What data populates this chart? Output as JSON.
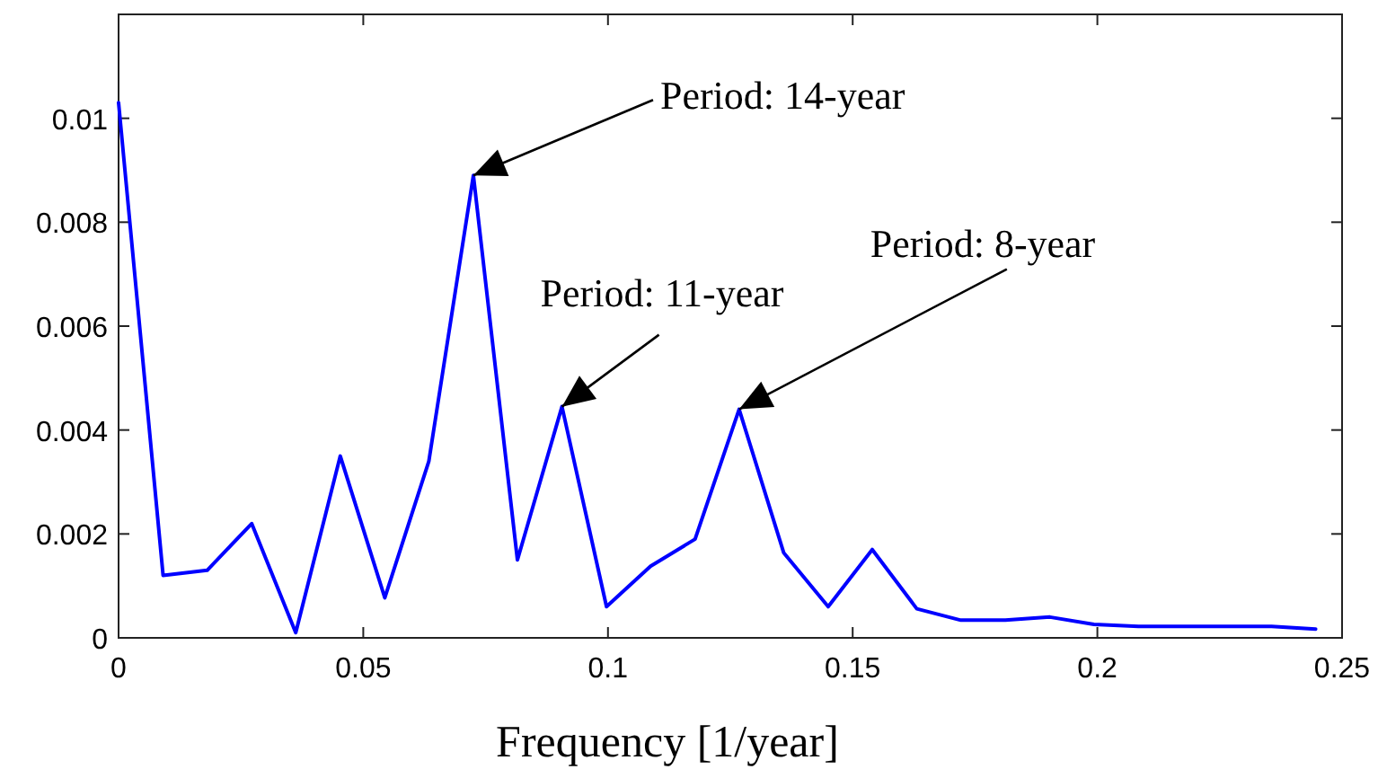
{
  "chart_data": {
    "type": "line",
    "xlabel": "Frequency [1/year]",
    "x": [
      0,
      0.0091,
      0.0181,
      0.0272,
      0.0362,
      0.0453,
      0.0544,
      0.0634,
      0.0725,
      0.0815,
      0.0906,
      0.0997,
      0.1087,
      0.1178,
      0.1268,
      0.1359,
      0.145,
      0.154,
      0.1631,
      0.1721,
      0.1812,
      0.1903,
      0.1993,
      0.2084,
      0.2174,
      0.2265,
      0.2356,
      0.2446
    ],
    "series": [
      {
        "color": "#0000ff",
        "values": [
          0.0103,
          0.0012,
          0.0013,
          0.0022,
          0.0001,
          0.0035,
          0.00077,
          0.0034,
          0.0089,
          0.0015,
          0.00445,
          0.0006,
          0.00138,
          0.0019,
          0.0044,
          0.00164,
          0.0006,
          0.0017,
          0.00056,
          0.00034,
          0.00034,
          0.0004,
          0.00026,
          0.00022,
          0.00022,
          0.00022,
          0.00022,
          0.00017
        ]
      }
    ],
    "xlim": [
      0,
      0.25
    ],
    "ylim": [
      0,
      0.012
    ],
    "xticks": [
      0,
      0.05,
      0.1,
      0.15,
      0.2,
      0.25
    ],
    "yticks": [
      0,
      0.002,
      0.004,
      0.006,
      0.008,
      0.01
    ],
    "grid": false,
    "marker": "none",
    "line_style": "solid",
    "annotations": [
      {
        "text": "Period: 14-year",
        "x": 0.0725,
        "y": 0.0089
      },
      {
        "text": "Period: 11-year",
        "x": 0.0906,
        "y": 0.00445
      },
      {
        "text": "Period: 8-year",
        "x": 0.1268,
        "y": 0.0044
      }
    ]
  }
}
